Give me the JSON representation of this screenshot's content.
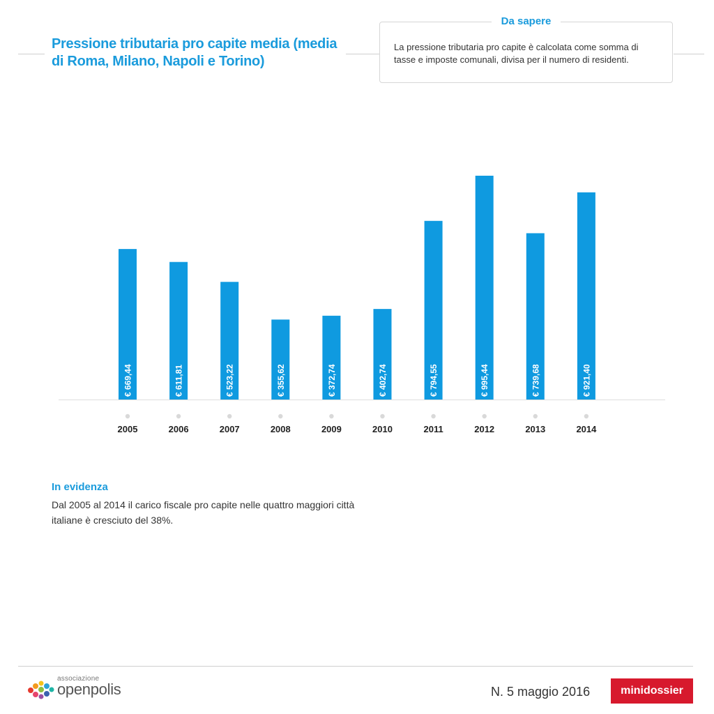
{
  "header": {
    "title": "Pressione tributaria pro capite media (media di Roma, Milano, Napoli e Torino)"
  },
  "info_box": {
    "heading": "Da sapere",
    "text": "La pressione tributaria pro capite è calcolata come somma di tasse e imposte comunali, divisa per il numero di residenti."
  },
  "chart_data": {
    "type": "bar",
    "title": "Pressione tributaria pro capite media (media di Roma, Milano, Napoli e Torino)",
    "categories": [
      "2005",
      "2006",
      "2007",
      "2008",
      "2009",
      "2010",
      "2011",
      "2012",
      "2013",
      "2014"
    ],
    "values": [
      669.44,
      611.81,
      523.22,
      355.62,
      372.74,
      402.74,
      794.55,
      995.44,
      739.68,
      921.4
    ],
    "data_labels": [
      "€ 669,44",
      "€ 611,81",
      "€ 523,22",
      "€ 355,62",
      "€ 372,74",
      "€ 402,74",
      "€ 794,55",
      "€ 995,44",
      "€ 739,68",
      "€ 921,40"
    ],
    "xlabel": "",
    "ylabel": "",
    "ylim": [
      0,
      1000
    ],
    "grid": false,
    "bar_color": "#0f9ae0"
  },
  "highlight": {
    "heading": "In evidenza",
    "text": "Dal 2005 al 2014 il carico fiscale pro capite nelle quattro maggiori città italiane è cresciuto del 38%."
  },
  "footer": {
    "logo_small": "associazione",
    "logo_big": "openpolis",
    "issue": "N. 5 maggio 2016",
    "badge": "minidossier"
  },
  "colors": {
    "accent": "#1a9bdc",
    "bar": "#0f9ae0",
    "badge": "#d7192d"
  }
}
